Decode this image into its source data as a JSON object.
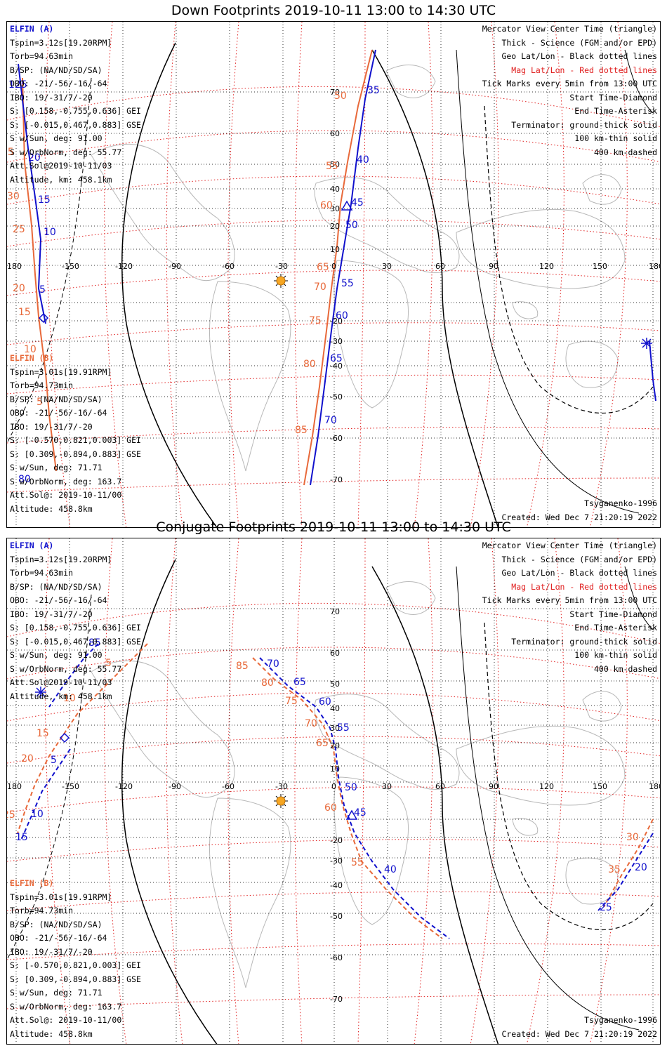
{
  "panels": [
    {
      "title": "Down Footprints 2019-10-11 13:00 to 14:30 UTC",
      "elfin_a": {
        "header": "ELFIN (A)",
        "lines": [
          "Tspin=3.12s[19.20RPM]",
          "Torb=94.63min",
          "B/SP: (NA/ND/SD/SA)",
          "OBO: -21/-56/-16/-64",
          "IBO: 19/-31/7/-20",
          "S: [0.158,-0.755,0.636] GEI",
          "S: [-0.015,0.467,0.883] GSE",
          "S w/Sun, deg: 91.00",
          "S w/OrbNorm, deg: 55.77",
          "Att.Sol@2019-10-11/03",
          "Altitude, km: 458.1km"
        ]
      },
      "elfin_b": {
        "header": "ELFIN (B)",
        "lines": [
          "Tspin=3.01s[19.91RPM]",
          "Torb=94.73min",
          "B/SP: (NA/ND/SD/SA)",
          "OBO: -21/-56/-16/-64",
          "IBO: 19/-31/7/-20",
          "S: [-0.570,0.821,0.003] GEI",
          "S: [0.309,-0.894,0.883] GSE",
          "S w/Sun, deg: 71.71",
          "S w/OrbNorm, deg: 163.7",
          "Att.Sol@: 2019-10-11/00",
          "Altitude: 458.8km"
        ]
      },
      "legend": [
        "Mercator View Center Time (triangle)",
        "Thick - Science (FGM and/or EPD)",
        "Geo Lat/Lon - Black dotted lines",
        "Mag Lat/Lon - Red dotted lines",
        "Tick Marks every 5min from 13:00 UTC",
        "Start Time-Diamond",
        "End Time-Asterisk",
        "Terminator: ground-thick solid",
        "100 km-thin solid",
        "400 km-dashed"
      ],
      "model": "Tsyganenko-1996",
      "created": "Created: Wed Dec  7 21:20:19 2022"
    },
    {
      "title": "Conjugate Footprints 2019-10-11 13:00 to 14:30 UTC",
      "elfin_a": {
        "header": "ELFIN (A)",
        "lines": [
          "Tspin=3.12s[19.20RPM]",
          "Torb=94.63min",
          "B/SP: (NA/ND/SD/SA)",
          "OBO: -21/-56/-16/-64",
          "IBO: 19/-31/7/-20",
          "S: [0.158,-0.755,0.636] GEI",
          "S: [-0.015,0.467,0.883] GSE",
          "S w/Sun, deg: 91.00",
          "S w/OrbNorm, deg: 55.77",
          "Att.Sol@2019-10-11/03",
          "Altitude, km: 458.1km"
        ]
      },
      "elfin_b": {
        "header": "ELFIN (B)",
        "lines": [
          "Tspin=3.01s[19.91RPM]",
          "Torb=94.73min",
          "B/SP: (NA/ND/SD/SA)",
          "OBO: -21/-56/-16/-64",
          "IBO: 19/-31/7/-20",
          "S: [-0.570,0.821,0.003] GEI",
          "S: [0.309,-0.894,0.883] GSE",
          "S w/Sun, deg: 71.71",
          "S w/OrbNorm, deg: 163.7",
          "Att.Sol@: 2019-10-11/00",
          "Altitude: 458.8km"
        ]
      },
      "legend": [
        "Mercator View Center Time (triangle)",
        "Thick - Science (FGM and/or EPD)",
        "Geo Lat/Lon - Black dotted lines",
        "Mag Lat/Lon - Red dotted lines",
        "Tick Marks every 5min from 13:00 UTC",
        "Start Time-Diamond",
        "End Time-Asterisk",
        "Terminator: ground-thick solid",
        "100 km-thin solid",
        "400 km-dashed"
      ],
      "model": "Tsyganenko-1996",
      "created": "Created: Wed Dec  7 21:20:19 2022"
    }
  ],
  "lon_ticks": [
    "180",
    "-150",
    "-120",
    "-90",
    "-60",
    "-30",
    "0",
    "30",
    "60",
    "90",
    "120",
    "150",
    "180"
  ],
  "lat_ticks": [
    "70",
    "60",
    "50",
    "40",
    "30",
    "20",
    "10",
    "-20",
    "-30",
    "-40",
    "-50",
    "-60",
    "-70"
  ],
  "down_tracks": {
    "a_labels": [
      "125",
      "20",
      "15",
      "10",
      "5",
      "35",
      "40",
      "45",
      "50",
      "55",
      "60",
      "65",
      "70",
      "80"
    ],
    "b_labels": [
      "35",
      "30",
      "25",
      "20",
      "15",
      "10",
      "50",
      "55",
      "60",
      "65",
      "70",
      "75",
      "80",
      "85",
      "5"
    ]
  },
  "conj_tracks": {
    "a_labels": [
      "85",
      "70",
      "65",
      "60",
      "55",
      "50",
      "45",
      "40",
      "5",
      "10",
      "15",
      "20",
      "25"
    ],
    "b_labels": [
      "5",
      "10",
      "15",
      "20",
      "25",
      "85",
      "80",
      "75",
      "70",
      "65",
      "60",
      "55",
      "30",
      "35"
    ]
  },
  "colors": {
    "elfin_a": "#1010cc",
    "elfin_b": "#e8693a",
    "mag_grid": "#e02020",
    "sun": "#f5a623"
  }
}
